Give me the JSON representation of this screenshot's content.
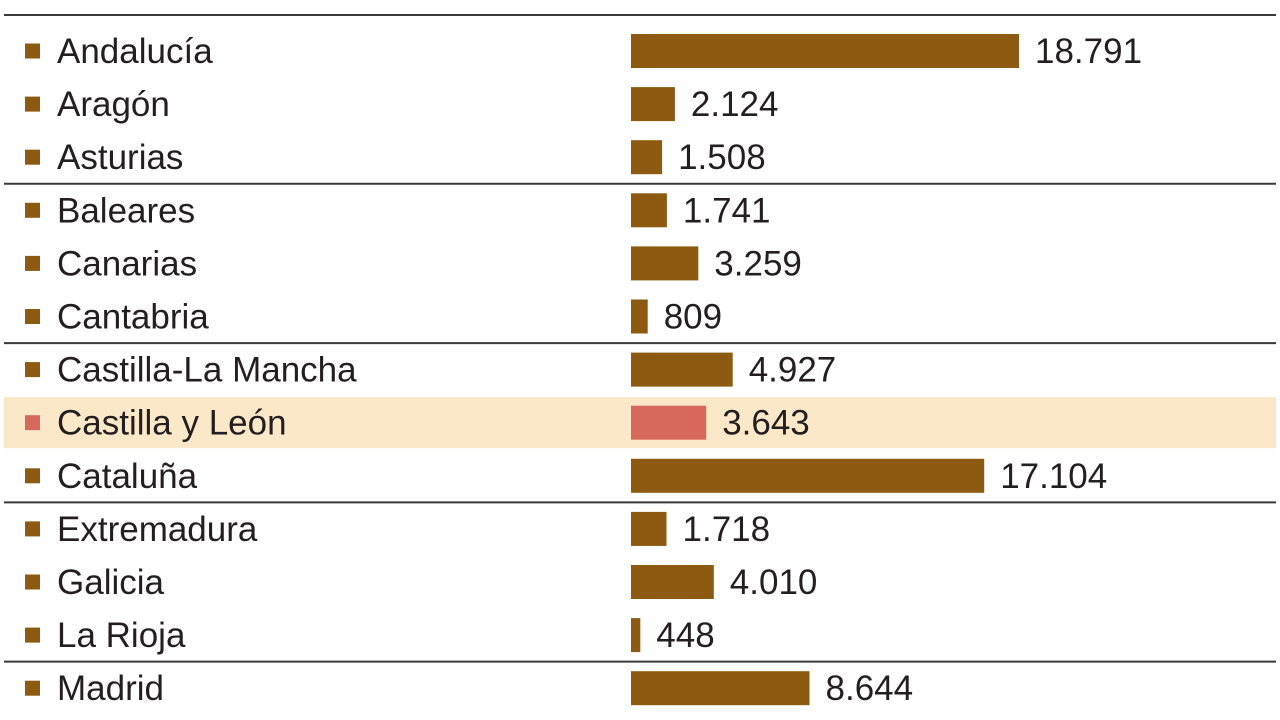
{
  "chart_data": {
    "type": "bar",
    "orientation": "horizontal",
    "categories": [
      "Andalucía",
      "Aragón",
      "Asturias",
      "Baleares",
      "Canarias",
      "Cantabria",
      "Castilla-La Mancha",
      "Castilla y León",
      "Cataluña",
      "Extremadura",
      "Galicia",
      "La Rioja",
      "Madrid"
    ],
    "values": [
      18791,
      2124,
      1508,
      1741,
      3259,
      809,
      4927,
      3643,
      17104,
      1718,
      4010,
      448,
      8644
    ],
    "value_labels": [
      "18.791",
      "2.124",
      "1.508",
      "1.741",
      "3.259",
      "809",
      "4.927",
      "3.643",
      "17.104",
      "1.718",
      "4.010",
      "448",
      "8.644"
    ],
    "highlighted_category": "Castilla y León",
    "title": "",
    "xlabel": "",
    "ylabel": "",
    "xlim": [
      0,
      18791
    ],
    "grid": false,
    "colors": {
      "bar": "#8c5a10",
      "highlight_bar": "#d9685c",
      "highlight_row": "#fbe8c8",
      "marker": "#8c5a10",
      "highlight_marker": "#d9685c",
      "separator": "#3a3a3a",
      "text": "#231f20"
    }
  }
}
